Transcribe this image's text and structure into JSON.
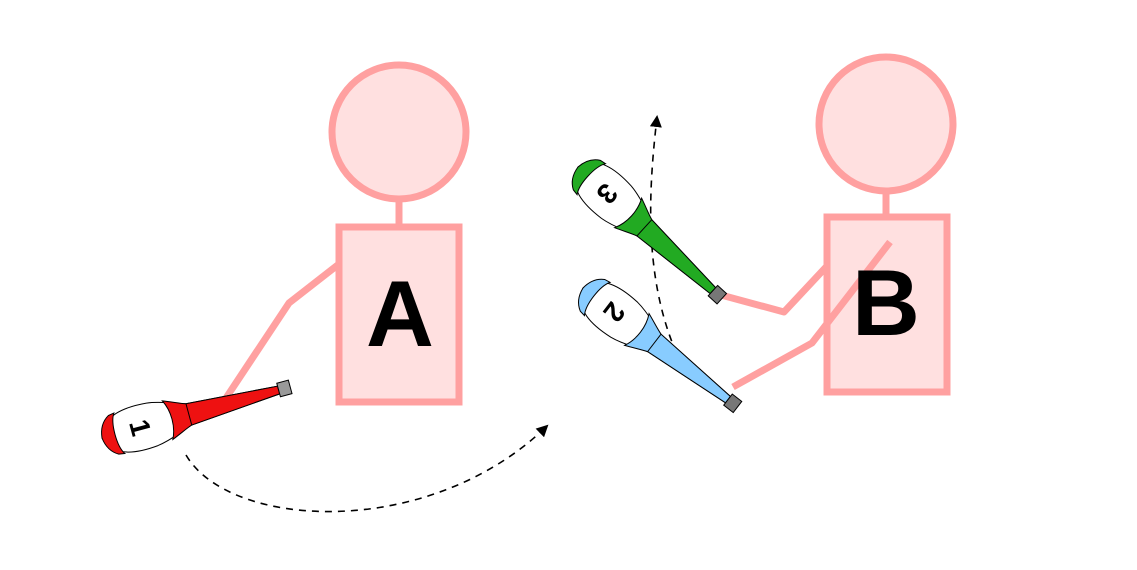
{
  "colors": {
    "person_stroke": "#ffa0a0",
    "person_fill": "#ffe0e0",
    "arrow": "#000000"
  },
  "jugglers": [
    {
      "id": "A",
      "label": "A"
    },
    {
      "id": "B",
      "label": "B"
    }
  ],
  "clubs": [
    {
      "number": "1",
      "color": "#ee1111",
      "held_by": "A"
    },
    {
      "number": "2",
      "color": "#88ccff",
      "held_by": "B"
    },
    {
      "number": "3",
      "color": "#22aa22",
      "held_by": "B"
    }
  ]
}
